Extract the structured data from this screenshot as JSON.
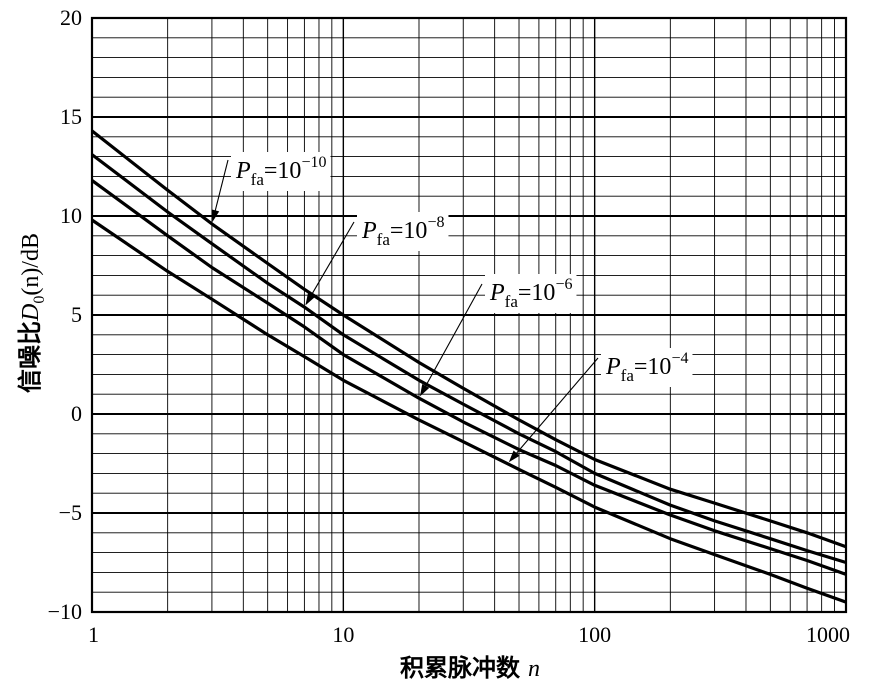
{
  "chart_data": {
    "type": "line",
    "xscale": "log",
    "xlim": [
      1,
      1000
    ],
    "ylim": [
      -10,
      20
    ],
    "grid": true,
    "xlabel_main": "积累脉冲数",
    "xlabel_var": "n",
    "ylabel_main": "信噪比",
    "ylabel_sym": "D",
    "ylabel_sub": "0",
    "ylabel_rest": "(n)/dB",
    "x_ticks": [
      1,
      10,
      100,
      1000
    ],
    "x_tick_labels": [
      "1",
      "10",
      "100",
      "1000"
    ],
    "y_ticks": [
      -10,
      -5,
      0,
      5,
      10,
      15,
      20
    ],
    "y_tick_labels": [
      "−10",
      "−5",
      "0",
      "5",
      "10",
      "15",
      "20"
    ],
    "series": [
      {
        "label_p": "P",
        "label_sub": "fa",
        "label_eq": "=10",
        "label_exp": "−10",
        "x": [
          1,
          2,
          3,
          5,
          7,
          10,
          20,
          30,
          50,
          70,
          100,
          200,
          300,
          500,
          700,
          1000
        ],
        "y": [
          14.3,
          11.3,
          9.6,
          7.6,
          6.3,
          5.0,
          2.6,
          1.3,
          -0.3,
          -1.3,
          -2.3,
          -3.8,
          -4.5,
          -5.4,
          -6.0,
          -6.7
        ]
      },
      {
        "label_p": "P",
        "label_sub": "fa",
        "label_eq": "=10",
        "label_exp": "−8",
        "x": [
          1,
          2,
          3,
          5,
          7,
          10,
          20,
          30,
          50,
          70,
          100,
          200,
          300,
          500,
          700,
          1000
        ],
        "y": [
          13.1,
          10.2,
          8.6,
          6.6,
          5.4,
          4.0,
          1.7,
          0.5,
          -1.0,
          -1.9,
          -3.0,
          -4.6,
          -5.4,
          -6.3,
          -6.9,
          -7.5
        ]
      },
      {
        "label_p": "P",
        "label_sub": "fa",
        "label_eq": "=10",
        "label_exp": "−6",
        "x": [
          1,
          2,
          3,
          5,
          7,
          10,
          20,
          30,
          50,
          70,
          100,
          200,
          300,
          500,
          700,
          1000
        ],
        "y": [
          11.8,
          9.0,
          7.4,
          5.6,
          4.4,
          3.0,
          0.8,
          -0.4,
          -1.8,
          -2.6,
          -3.6,
          -5.1,
          -5.9,
          -6.8,
          -7.4,
          -8.1
        ]
      },
      {
        "label_p": "P",
        "label_sub": "fa",
        "label_eq": "=10",
        "label_exp": "−4",
        "x": [
          1,
          2,
          3,
          5,
          7,
          10,
          20,
          30,
          50,
          70,
          100,
          200,
          300,
          500,
          700,
          1000
        ],
        "y": [
          9.8,
          7.2,
          5.8,
          4.0,
          2.9,
          1.7,
          -0.3,
          -1.4,
          -2.8,
          -3.7,
          -4.7,
          -6.3,
          -7.1,
          -8.1,
          -8.8,
          -9.5
        ]
      }
    ]
  }
}
